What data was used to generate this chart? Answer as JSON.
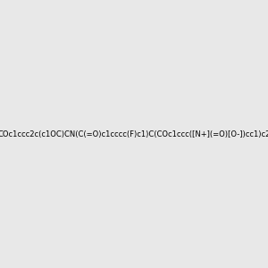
{
  "smiles": "COc1ccc2c(c1OC)CN(C(=O)c1cccc(F)c1)C(COc1ccc([N+](=O)[O-])cc1)c2",
  "background_color": "#e8e8e8",
  "bond_color": "#000000",
  "atom_colors": {
    "N": "#0000ff",
    "O": "#ff0000",
    "F": "#ff00ff",
    "C": "#000000"
  },
  "figsize": [
    3.0,
    3.0
  ],
  "dpi": 100
}
